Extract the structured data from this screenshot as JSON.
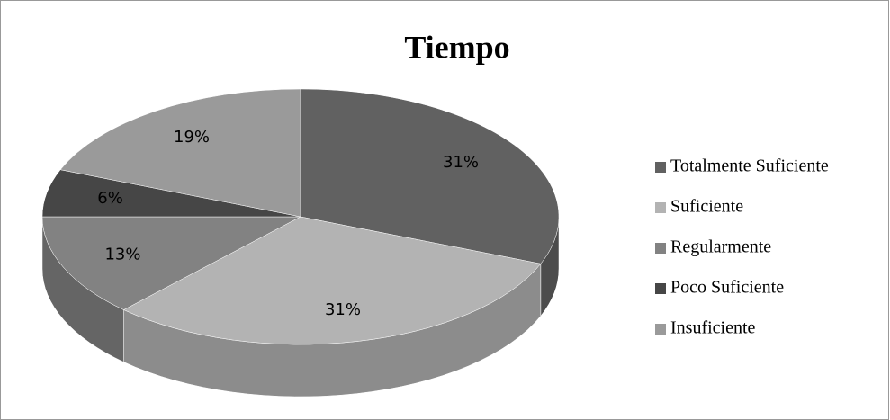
{
  "chart_data": {
    "type": "pie",
    "title": "Tiempo",
    "categories": [
      "Totalmente Suficiente",
      "Suficiente",
      "Regularmente",
      "Poco Suficiente",
      "Insuficiente"
    ],
    "values": [
      31,
      31,
      13,
      6,
      19
    ],
    "value_labels": [
      "31%",
      "31%",
      "13%",
      "6%",
      "19%"
    ],
    "colors": [
      "#616161",
      "#b3b3b3",
      "#828282",
      "#464646",
      "#9a9a9a"
    ],
    "legend": "right"
  }
}
